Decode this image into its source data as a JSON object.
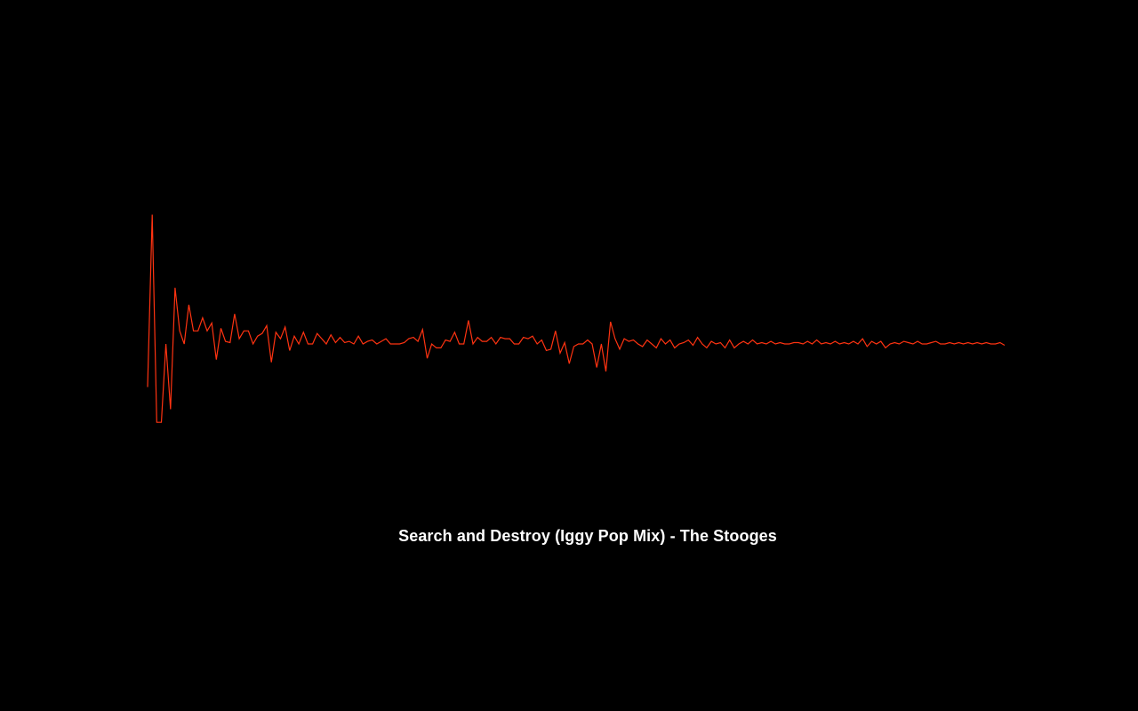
{
  "now_playing": {
    "track": "Search and Destroy (Iggy Pop Mix)",
    "separator": " - ",
    "artist": "The Stooges",
    "text_color": "#ffffff"
  },
  "visualizer": {
    "background_color": "#000000",
    "waveform_color": "#ff3311",
    "amplitudes": [
      -0.33,
      0.99,
      -0.6,
      -0.6,
      0.0,
      -0.5,
      0.43,
      0.1,
      0.0,
      0.3,
      0.1,
      0.1,
      0.2,
      0.1,
      0.16,
      -0.12,
      0.12,
      0.02,
      0.01,
      0.23,
      0.04,
      0.1,
      0.1,
      0.0,
      0.06,
      0.08,
      0.14,
      -0.14,
      0.09,
      0.04,
      0.13,
      -0.05,
      0.06,
      0.0,
      0.09,
      0.0,
      0.0,
      0.08,
      0.04,
      0.0,
      0.07,
      0.01,
      0.05,
      0.01,
      0.02,
      0.0,
      0.06,
      0.0,
      0.02,
      0.03,
      0.0,
      0.02,
      0.04,
      0.0,
      0.0,
      0.0,
      0.01,
      0.04,
      0.05,
      0.02,
      0.11,
      -0.11,
      0.0,
      -0.03,
      -0.03,
      0.03,
      0.02,
      0.09,
      0.0,
      0.0,
      0.18,
      0.0,
      0.05,
      0.02,
      0.02,
      0.05,
      0.0,
      0.05,
      0.04,
      0.04,
      0.0,
      0.0,
      0.05,
      0.04,
      0.06,
      0.0,
      0.03,
      -0.05,
      -0.04,
      0.1,
      -0.07,
      0.01,
      -0.15,
      -0.02,
      0.0,
      0.0,
      0.03,
      0.0,
      -0.18,
      0.0,
      -0.21,
      0.17,
      0.04,
      -0.04,
      0.04,
      0.02,
      0.03,
      0.0,
      -0.02,
      0.03,
      0.0,
      -0.03,
      0.04,
      0.0,
      0.03,
      -0.03,
      0.0,
      0.01,
      0.03,
      -0.01,
      0.05,
      0.0,
      -0.03,
      0.02,
      0.0,
      0.01,
      -0.03,
      0.03,
      -0.03,
      0.0,
      0.02,
      0.0,
      0.03,
      0.0,
      0.01,
      0.0,
      0.02,
      0.0,
      0.01,
      0.0,
      0.0,
      0.01,
      0.01,
      0.0,
      0.02,
      0.0,
      0.03,
      0.0,
      0.01,
      0.0,
      0.02,
      0.0,
      0.01,
      0.0,
      0.02,
      0.0,
      0.04,
      -0.02,
      0.02,
      0.0,
      0.02,
      -0.03,
      0.0,
      0.01,
      0.0,
      0.02,
      0.01,
      0.0,
      0.02,
      0.0,
      0.0,
      0.01,
      0.02,
      0.0,
      0.0,
      0.01,
      0.0,
      0.01,
      0.0,
      0.01,
      0.0,
      0.01,
      0.0,
      0.01,
      0.0,
      0.0,
      0.01,
      -0.01
    ]
  }
}
